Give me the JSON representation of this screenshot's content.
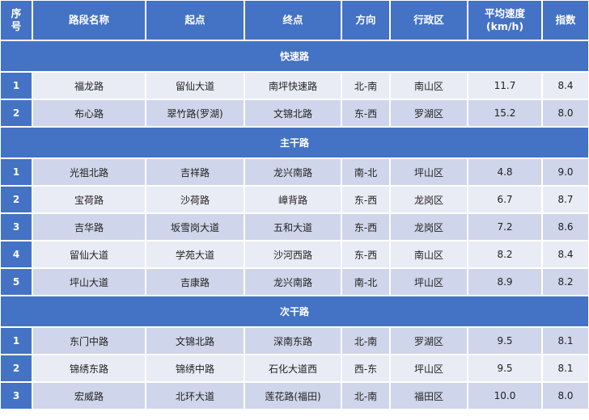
{
  "header": [
    "序号",
    "路段名称",
    "起点",
    "终点",
    "方向",
    "行政区",
    "平均速度(km/h)",
    "指数"
  ],
  "header_display": {
    "index_line1": "序",
    "index_line2": "号",
    "speed_line1": "平均速度",
    "speed_line2": "(km/h)"
  },
  "colors": {
    "header": "#4472c4",
    "row_light": "#e9ebf5",
    "row_dark": "#cfd5ea"
  },
  "sections": [
    {
      "title": "快速路",
      "rows": [
        {
          "no": "1",
          "name": "福龙路",
          "start": "留仙大道",
          "end": "南坪快速路",
          "dir": "北-南",
          "district": "南山区",
          "speed": "11.7",
          "index": "8.4",
          "shade": "light"
        },
        {
          "no": "2",
          "name": "布心路",
          "start": "翠竹路(罗湖)",
          "end": "文锦北路",
          "dir": "东-西",
          "district": "罗湖区",
          "speed": "15.2",
          "index": "8.0",
          "shade": "dark"
        }
      ]
    },
    {
      "title": "主干路",
      "rows": [
        {
          "no": "1",
          "name": "光祖北路",
          "start": "吉祥路",
          "end": "龙兴南路",
          "dir": "南-北",
          "district": "坪山区",
          "speed": "4.8",
          "index": "9.0",
          "shade": "dark"
        },
        {
          "no": "2",
          "name": "宝荷路",
          "start": "沙荷路",
          "end": "嶂背路",
          "dir": "东-西",
          "district": "龙岗区",
          "speed": "6.7",
          "index": "8.7",
          "shade": "light"
        },
        {
          "no": "3",
          "name": "吉华路",
          "start": "坂雪岗大道",
          "end": "五和大道",
          "dir": "东-西",
          "district": "龙岗区",
          "speed": "7.2",
          "index": "8.6",
          "shade": "dark"
        },
        {
          "no": "4",
          "name": "留仙大道",
          "start": "学苑大道",
          "end": "沙河西路",
          "dir": "东-西",
          "district": "南山区",
          "speed": "8.2",
          "index": "8.4",
          "shade": "light"
        },
        {
          "no": "5",
          "name": "坪山大道",
          "start": "吉康路",
          "end": "龙兴南路",
          "dir": "南-北",
          "district": "坪山区",
          "speed": "8.9",
          "index": "8.2",
          "shade": "dark"
        }
      ]
    },
    {
      "title": "次干路",
      "rows": [
        {
          "no": "1",
          "name": "东门中路",
          "start": "文锦北路",
          "end": "深南东路",
          "dir": "北-南",
          "district": "罗湖区",
          "speed": "9.5",
          "index": "8.1",
          "shade": "dark"
        },
        {
          "no": "2",
          "name": "锦绣东路",
          "start": "锦绣中路",
          "end": "石化大道西",
          "dir": "西-东",
          "district": "坪山区",
          "speed": "9.5",
          "index": "8.1",
          "shade": "light"
        },
        {
          "no": "3",
          "name": "宏威路",
          "start": "北环大道",
          "end": "莲花路(福田)",
          "dir": "北-南",
          "district": "福田区",
          "speed": "10.0",
          "index": "8.0",
          "shade": "dark"
        }
      ]
    }
  ]
}
